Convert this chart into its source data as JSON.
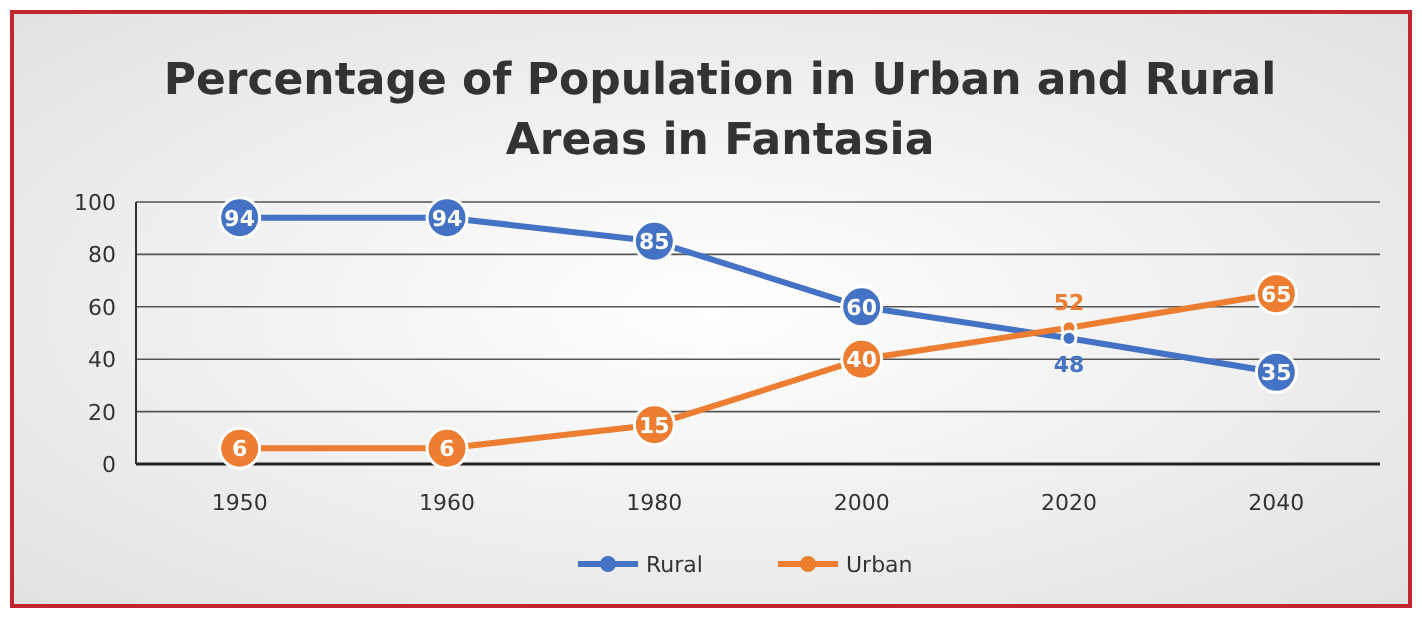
{
  "chart_data": {
    "type": "line",
    "title": "Percentage of Population in Urban and Rural\nAreas in Fantasia",
    "categories": [
      "1950",
      "1960",
      "1980",
      "2000",
      "2020",
      "2040"
    ],
    "series": [
      {
        "name": "Rural",
        "color": "#4472c4",
        "values": [
          94,
          94,
          85,
          60,
          48,
          35
        ]
      },
      {
        "name": "Urban",
        "color": "#ed7d31",
        "values": [
          6,
          6,
          15,
          40,
          52,
          65
        ]
      }
    ],
    "ylim": [
      0,
      100
    ],
    "yticks": [
      0,
      20,
      40,
      60,
      80,
      100
    ],
    "grid": "y",
    "legend": "bottom",
    "marker": "circle",
    "line_style": "solid",
    "data_labels": true
  }
}
